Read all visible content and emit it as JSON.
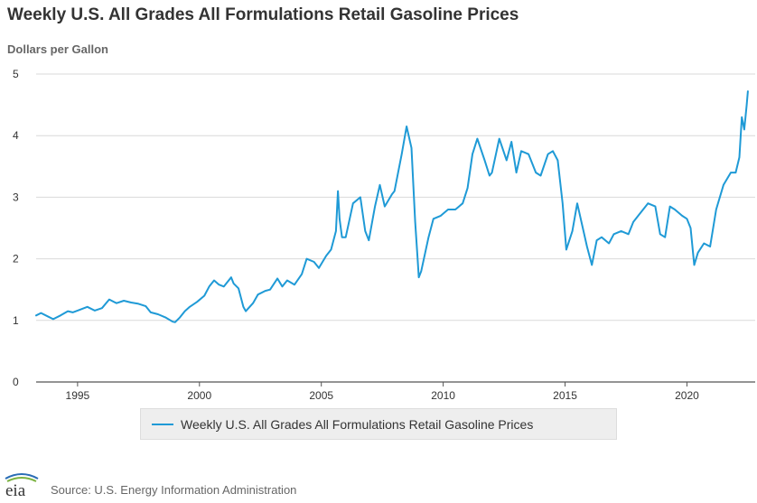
{
  "header": {
    "title": "Weekly U.S. All Grades All Formulations Retail Gasoline Prices",
    "units": "Dollars per Gallon"
  },
  "footer": {
    "source": "Source: U.S. Energy Information Administration",
    "logo_text": "eia"
  },
  "colors": {
    "series": "#1f9ad6",
    "grid": "#d9d9d9",
    "text": "#333333"
  },
  "chart_data": {
    "type": "line",
    "title": "Weekly U.S. All Grades All Formulations Retail Gasoline Prices",
    "ylabel": "Dollars per Gallon",
    "xlabel": "",
    "ylim": [
      0,
      5
    ],
    "xlim": [
      1993.3,
      2022.8
    ],
    "yticks": [
      0,
      1,
      2,
      3,
      4,
      5
    ],
    "xticks": [
      1995,
      2000,
      2005,
      2010,
      2015,
      2020
    ],
    "grid": true,
    "legend_position": "bottom",
    "series": [
      {
        "name": "Weekly U.S. All Grades All Formulations Retail Gasoline Prices",
        "x": [
          1993.3,
          1993.5,
          1993.8,
          1994.0,
          1994.3,
          1994.6,
          1994.8,
          1995.0,
          1995.4,
          1995.7,
          1996.0,
          1996.3,
          1996.6,
          1996.9,
          1997.2,
          1997.5,
          1997.8,
          1998.0,
          1998.3,
          1998.6,
          1998.9,
          1999.0,
          1999.2,
          1999.4,
          1999.6,
          1999.9,
          2000.2,
          2000.4,
          2000.6,
          2000.8,
          2001.0,
          2001.3,
          2001.4,
          2001.6,
          2001.8,
          2001.9,
          2002.2,
          2002.4,
          2002.7,
          2002.9,
          2003.2,
          2003.4,
          2003.6,
          2003.9,
          2004.2,
          2004.4,
          2004.7,
          2004.9,
          2005.2,
          2005.4,
          2005.6,
          2005.68,
          2005.75,
          2005.85,
          2006.0,
          2006.3,
          2006.6,
          2006.8,
          2006.95,
          2007.2,
          2007.4,
          2007.6,
          2007.9,
          2008.0,
          2008.3,
          2008.5,
          2008.7,
          2008.85,
          2008.95,
          2009.0,
          2009.1,
          2009.4,
          2009.6,
          2009.9,
          2010.2,
          2010.5,
          2010.8,
          2011.0,
          2011.2,
          2011.4,
          2011.7,
          2011.9,
          2012.0,
          2012.3,
          2012.6,
          2012.8,
          2013.0,
          2013.2,
          2013.5,
          2013.8,
          2014.0,
          2014.3,
          2014.5,
          2014.7,
          2014.9,
          2015.05,
          2015.3,
          2015.5,
          2015.7,
          2015.9,
          2016.1,
          2016.3,
          2016.5,
          2016.8,
          2017.0,
          2017.3,
          2017.6,
          2017.8,
          2018.0,
          2018.4,
          2018.7,
          2018.9,
          2019.1,
          2019.3,
          2019.5,
          2019.8,
          2020.0,
          2020.15,
          2020.3,
          2020.45,
          2020.7,
          2020.95,
          2021.2,
          2021.5,
          2021.8,
          2022.0,
          2022.15,
          2022.25,
          2022.35,
          2022.45,
          2022.5
        ],
        "values": [
          1.08,
          1.12,
          1.06,
          1.02,
          1.08,
          1.15,
          1.13,
          1.16,
          1.22,
          1.16,
          1.2,
          1.34,
          1.28,
          1.32,
          1.29,
          1.27,
          1.23,
          1.13,
          1.1,
          1.05,
          0.98,
          0.97,
          1.05,
          1.15,
          1.22,
          1.3,
          1.4,
          1.55,
          1.65,
          1.58,
          1.55,
          1.7,
          1.6,
          1.52,
          1.22,
          1.15,
          1.28,
          1.42,
          1.48,
          1.5,
          1.68,
          1.55,
          1.65,
          1.58,
          1.75,
          2.0,
          1.95,
          1.85,
          2.05,
          2.15,
          2.45,
          3.1,
          2.65,
          2.35,
          2.35,
          2.9,
          3.0,
          2.45,
          2.3,
          2.85,
          3.2,
          2.85,
          3.05,
          3.1,
          3.7,
          4.15,
          3.8,
          2.6,
          2.0,
          1.7,
          1.8,
          2.35,
          2.65,
          2.7,
          2.8,
          2.8,
          2.9,
          3.15,
          3.7,
          3.95,
          3.6,
          3.35,
          3.4,
          3.95,
          3.6,
          3.9,
          3.4,
          3.75,
          3.7,
          3.4,
          3.35,
          3.7,
          3.75,
          3.6,
          2.9,
          2.15,
          2.45,
          2.9,
          2.55,
          2.2,
          1.9,
          2.3,
          2.35,
          2.25,
          2.4,
          2.45,
          2.4,
          2.6,
          2.7,
          2.9,
          2.85,
          2.4,
          2.35,
          2.85,
          2.8,
          2.7,
          2.65,
          2.5,
          1.9,
          2.1,
          2.25,
          2.2,
          2.8,
          3.2,
          3.4,
          3.4,
          3.65,
          4.3,
          4.1,
          4.5,
          4.72
        ]
      }
    ]
  }
}
